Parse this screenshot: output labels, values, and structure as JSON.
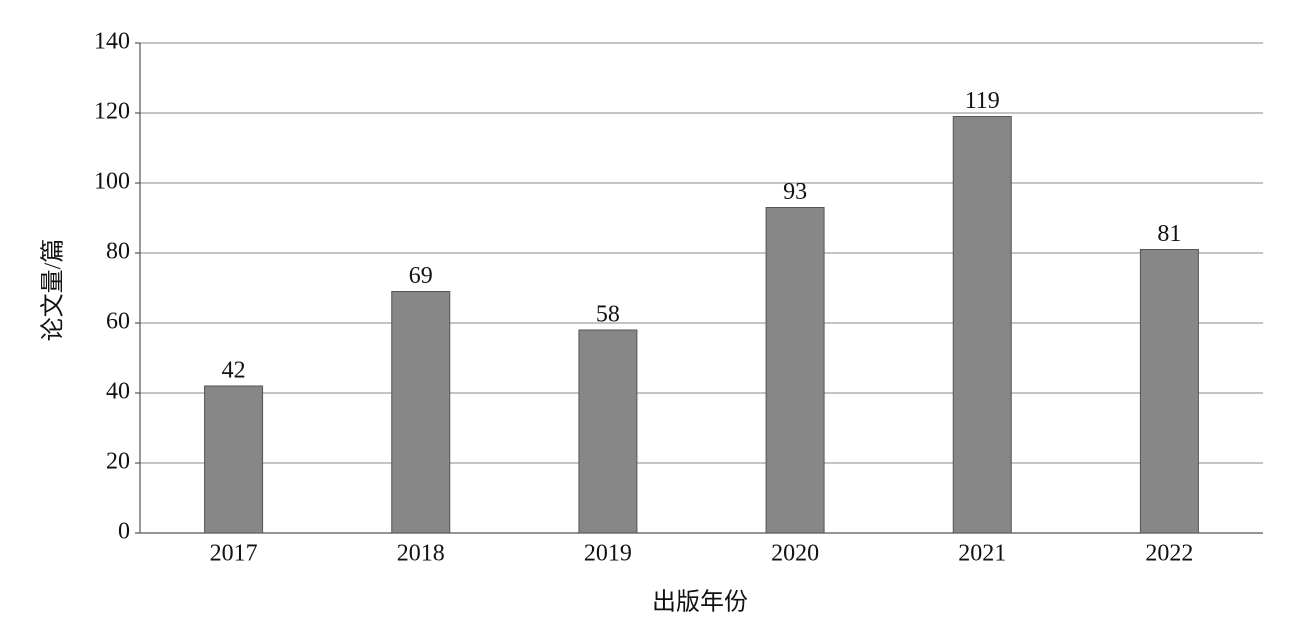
{
  "chart_data": {
    "type": "bar",
    "categories": [
      "2017",
      "2018",
      "2019",
      "2020",
      "2021",
      "2022"
    ],
    "values": [
      42,
      69,
      58,
      93,
      119,
      81
    ],
    "color": "#878787",
    "xlabel": "出版年份",
    "ylabel": "论文量/篇",
    "ylim": [
      0,
      140
    ],
    "yticks": [
      0,
      20,
      40,
      60,
      80,
      100,
      120,
      140
    ],
    "grid": true
  }
}
